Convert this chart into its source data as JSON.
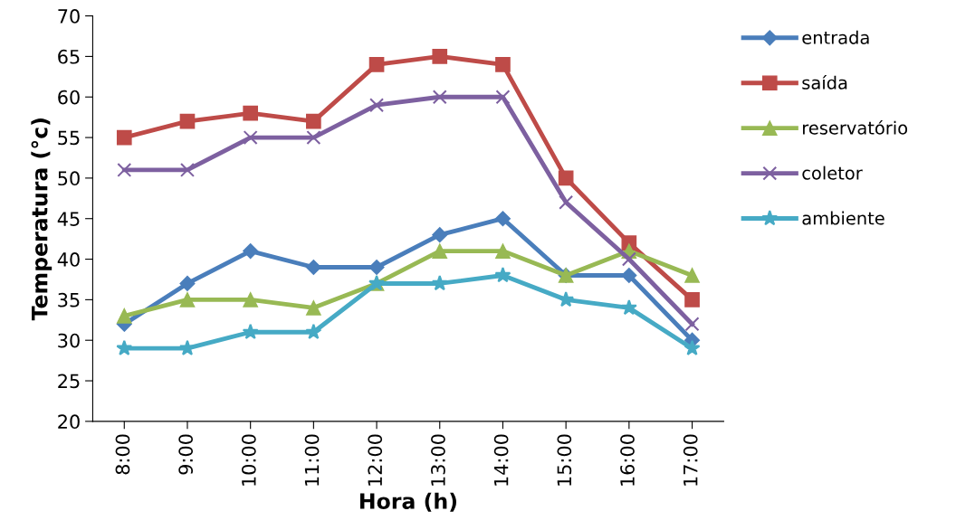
{
  "chart_data": {
    "type": "line",
    "xlabel": "Hora (h)",
    "ylabel": "Temperatura (°c)",
    "categories": [
      "8:00",
      "9:00",
      "10:00",
      "11:00",
      "12:00",
      "13:00",
      "14:00",
      "15:00",
      "16:00",
      "17:00"
    ],
    "series": [
      {
        "name": "entrada",
        "color": "#4a7ebb",
        "marker": "diamond",
        "values": [
          32,
          37,
          41,
          39,
          39,
          43,
          45,
          38,
          38,
          30
        ]
      },
      {
        "name": "saída",
        "color": "#be4b48",
        "marker": "square",
        "values": [
          55,
          57,
          58,
          57,
          64,
          65,
          64,
          50,
          42,
          35
        ]
      },
      {
        "name": "reservatório",
        "color": "#98b954",
        "marker": "triangle",
        "values": [
          33,
          35,
          35,
          34,
          37,
          41,
          41,
          38,
          41,
          38
        ]
      },
      {
        "name": "coletor",
        "color": "#7d60a0",
        "marker": "cross",
        "values": [
          51,
          51,
          55,
          55,
          59,
          60,
          60,
          47,
          40,
          32
        ]
      },
      {
        "name": "ambiente",
        "color": "#46aac5",
        "marker": "star",
        "values": [
          29,
          29,
          31,
          31,
          37,
          37,
          38,
          35,
          34,
          29
        ]
      }
    ],
    "ylim": [
      20,
      70
    ],
    "yticks": [
      20,
      25,
      30,
      35,
      40,
      45,
      50,
      55,
      60,
      65,
      70
    ],
    "grid": false,
    "legend": "right",
    "line_style": "solid"
  }
}
